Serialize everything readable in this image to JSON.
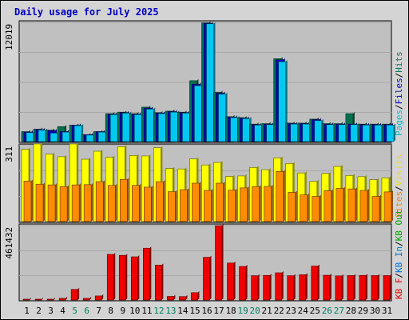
{
  "chart_data": {
    "type": "bar",
    "title": "Daily usage for July 2025",
    "categories": [
      "1",
      "2",
      "3",
      "4",
      "5",
      "6",
      "7",
      "8",
      "9",
      "10",
      "11",
      "12",
      "13",
      "14",
      "15",
      "16",
      "17",
      "18",
      "19",
      "20",
      "21",
      "22",
      "23",
      "24",
      "25",
      "26",
      "27",
      "28",
      "29",
      "30",
      "31"
    ],
    "weekend_days": [
      "5",
      "6",
      "12",
      "13",
      "19",
      "20",
      "26",
      "27"
    ],
    "panels": [
      {
        "name": "hits-panel",
        "ymax_label": "12019",
        "ylim": [
          0,
          12019
        ],
        "right_labels": [
          {
            "text": "Pages",
            "color": "#00c0c0"
          },
          {
            "text": "Files",
            "color": "#0000c0"
          },
          {
            "text": "Hits",
            "color": "#008060"
          }
        ],
        "series": [
          {
            "name": "Hits",
            "color": "#007050",
            "values": [
              1000,
              1250,
              1150,
              1500,
              1650,
              700,
              1000,
              2800,
              2950,
              2800,
              3450,
              2900,
              3050,
              2950,
              6100,
              11900,
              4950,
              2500,
              2400,
              1750,
              1800,
              8300,
              1850,
              1850,
              2250,
              1800,
              1800,
              2800,
              1750,
              1750,
              1750
            ]
          },
          {
            "name": "Files",
            "color": "#0000c0",
            "values": [
              950,
              1200,
              1100,
              1000,
              1650,
              700,
              1000,
              2750,
              2900,
              2750,
              3350,
              2850,
              3000,
              2900,
              5750,
              11850,
              4850,
              2450,
              2350,
              1700,
              1750,
              8200,
              1800,
              1800,
              2200,
              1750,
              1750,
              1750,
              1700,
              1700,
              1700
            ]
          },
          {
            "name": "Pages",
            "color": "#00c8f0",
            "values": [
              900,
              1150,
              850,
              950,
              1600,
              650,
              950,
              2700,
              2850,
              2700,
              3250,
              2800,
              2950,
              2850,
              5600,
              11800,
              4750,
              2400,
              2300,
              1650,
              1700,
              8000,
              1750,
              1750,
              2100,
              1700,
              1700,
              1700,
              1650,
              1650,
              1650
            ]
          }
        ]
      },
      {
        "name": "visits-panel",
        "ymax_label": "311",
        "ylim": [
          0,
          311
        ],
        "right_labels": [
          {
            "text": "Sites",
            "color": "#ff8000"
          },
          {
            "text": "Visits",
            "color": "#f0e000"
          }
        ],
        "series": [
          {
            "name": "Visits",
            "color": "#ffff00",
            "values": [
              290,
              311,
              270,
              260,
              311,
              250,
              282,
              258,
              300,
              265,
              263,
              296,
              213,
              211,
              251,
              227,
              237,
              181,
              183,
              217,
              208,
              255,
              233,
              195,
              161,
              193,
              221,
              185,
              180,
              168,
              175
            ]
          },
          {
            "name": "Sites",
            "color": "#ff8c00",
            "values": [
              162,
              150,
              147,
              140,
              147,
              148,
              160,
              145,
              169,
              145,
              138,
              160,
              120,
              128,
              154,
              125,
              154,
              126,
              135,
              140,
              141,
              201,
              117,
              107,
              101,
              124,
              133,
              131,
              125,
              101,
              119
            ]
          }
        ]
      },
      {
        "name": "kbytes-panel",
        "ymax_label": "461432",
        "ylim": [
          0,
          461432
        ],
        "right_labels": [
          {
            "text": "KB F",
            "color": "#e00000"
          },
          {
            "text": "KB In",
            "color": "#0070e0"
          },
          {
            "text": "KB Out",
            "color": "#00a000"
          }
        ],
        "series": [
          {
            "name": "KB F",
            "color": "#ee0000",
            "values": [
              5000,
              5000,
              5000,
              10000,
              65000,
              10000,
              25000,
              280000,
              274000,
              265000,
              318000,
              214000,
              22000,
              21000,
              45000,
              262000,
              456000,
              227000,
              206000,
              149000,
              151000,
              167000,
              149000,
              155000,
              208000,
              152000,
              148000,
              150000,
              151000,
              150000,
              150000
            ]
          }
        ]
      }
    ]
  },
  "colors": {
    "frame_bg": "#d4d4d4",
    "plot_bg": "#c0c0c0",
    "grid": "#a8a8a8",
    "title": "#0000c0",
    "day_label": "#000000",
    "weekend_label": "#008060"
  }
}
